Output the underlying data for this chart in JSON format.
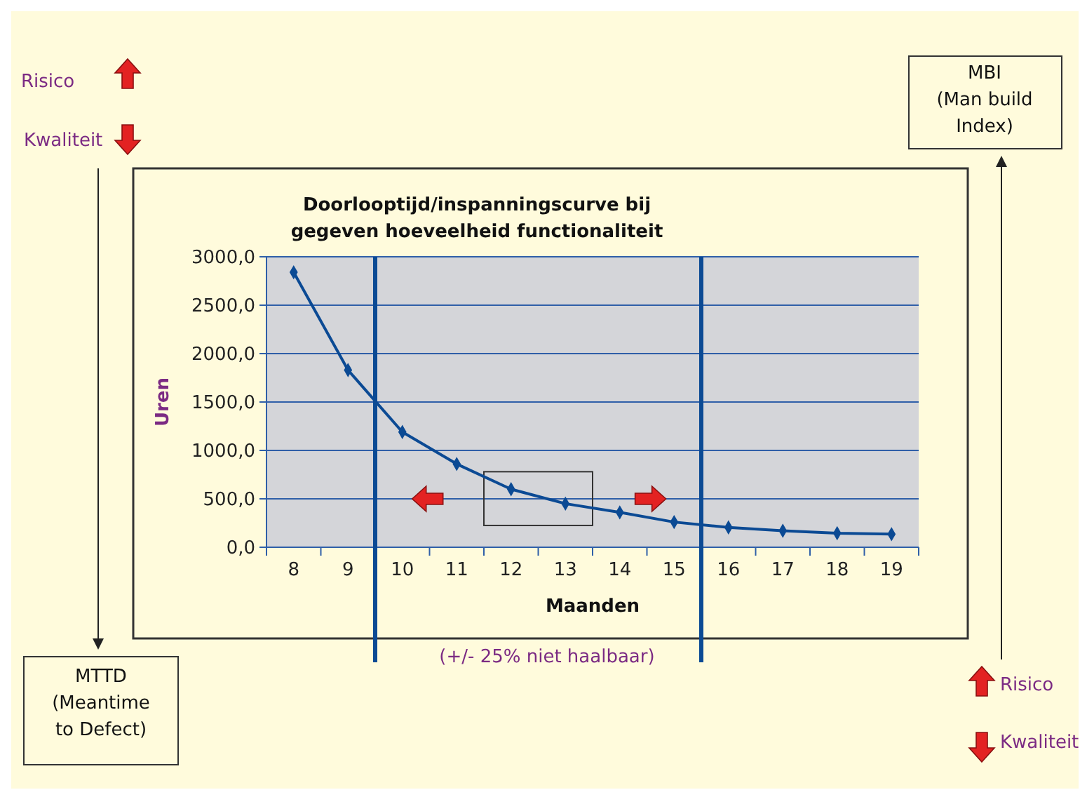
{
  "chart_data": {
    "type": "line",
    "title": "Doorlooptijd/inspanningscurve bij\ngegeven hoeveelheid functionaliteit",
    "xlabel": "Maanden",
    "ylabel": "Uren",
    "x": [
      8,
      9,
      10,
      11,
      12,
      13,
      14,
      15,
      16,
      17,
      18,
      19
    ],
    "series": [
      {
        "color": "#0b4a94",
        "values": [
          2840,
          1830,
          1190,
          860,
          600,
          450,
          360,
          260,
          205,
          170,
          145,
          135
        ]
      }
    ],
    "xlim": [
      7.5,
      19.5
    ],
    "xticks": [
      {
        "value": 7.5,
        "label": null
      },
      8,
      {
        "value": 8.5,
        "label": null
      },
      9,
      {
        "value": 9.5,
        "label": null
      },
      10,
      {
        "value": 10.5,
        "label": null
      },
      11,
      {
        "value": 11.5,
        "label": null
      },
      12,
      {
        "value": 12.5,
        "label": null
      },
      13,
      {
        "value": 13.5,
        "label": null
      },
      14,
      {
        "value": 14.5,
        "label": null
      },
      15,
      {
        "value": 15.5,
        "label": null
      },
      16,
      {
        "value": 16.5,
        "label": null
      },
      17,
      {
        "value": 17.5,
        "label": null
      },
      18,
      {
        "value": 18.5,
        "label": null
      },
      19,
      {
        "value": 19.5,
        "label": null
      }
    ],
    "ylim": [
      0,
      3000
    ],
    "yticks": [
      {
        "value": 0,
        "label": "0,0"
      },
      {
        "value": 500,
        "label": "500,0"
      },
      {
        "value": 1000,
        "label": "1000,0"
      },
      {
        "value": 1500,
        "label": "1500,0"
      },
      {
        "value": 2000,
        "label": "2000,0"
      },
      {
        "value": 2500,
        "label": "2500,0"
      },
      {
        "value": 3000,
        "label": "3000,0"
      }
    ],
    "grid": "y",
    "marker": "diamond",
    "line_style": "solid",
    "ref_lines": [
      {
        "axis": "x",
        "value": 9.5,
        "label": null,
        "color": "#0b4a94"
      },
      {
        "axis": "x",
        "value": 15.5,
        "label": null,
        "color": "#0b4a94"
      }
    ],
    "annotations": [
      "Risico",
      "Kwaliteit",
      "MBI\n(Man build\nIndex)",
      "MTTD\n(Meantime\nto Defect)",
      "Risico",
      "Kwaliteit",
      "(+/- 25% niet haalbaar)"
    ]
  }
}
